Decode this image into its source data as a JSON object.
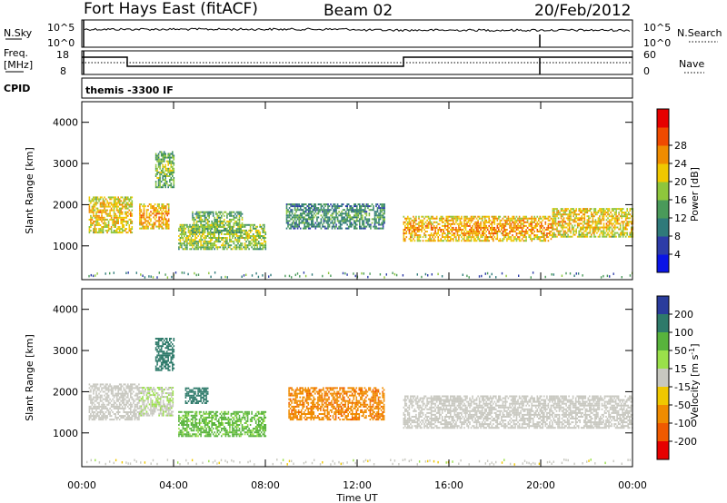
{
  "header": {
    "station": "Fort Hays East (fitACF)",
    "beam": "Beam 02",
    "date": "20/Feb/2012"
  },
  "top_panels": {
    "nsky_label": "N.Sky",
    "nsky_ticks": [
      "10^5",
      "10^0"
    ],
    "nsearch_label": "N.Search",
    "nsearch_ticks": [
      "10^5",
      "10^0"
    ],
    "freq_label": "Freq.",
    "freq_unit": "[MHz]",
    "freq_ticks": [
      "18",
      "8"
    ],
    "nave_label": "Nave",
    "nave_ticks": [
      "60",
      "0"
    ],
    "cpid_label": "CPID",
    "cpid_value": "themis -3300 IF"
  },
  "colors": {
    "power": [
      "#0a14e6",
      "#2d3ca8",
      "#2f7a7a",
      "#4a9a5a",
      "#8ec63c",
      "#f0c800",
      "#f08c00",
      "#f04a00",
      "#e60000"
    ],
    "velocity": [
      "#2a3c9c",
      "#2e7a6a",
      "#58b33c",
      "#9ae04a",
      "#c8c8c0",
      "#f0c800",
      "#f08c00",
      "#f05a00",
      "#e60000"
    ]
  },
  "chart_data": [
    {
      "type": "heatmap",
      "name": "power",
      "ylabel": "Slant Range [km]",
      "xlabel": "Time UT",
      "ylim": [
        180,
        4500
      ],
      "yticks": [
        "1000",
        "2000",
        "3000",
        "4000"
      ],
      "xticks": [
        "00:00",
        "04:00",
        "08:00",
        "12:00",
        "16:00",
        "20:00",
        "00:00"
      ],
      "colorbar": {
        "label": "Power [dB]",
        "ticks": [
          "4",
          "8",
          "12",
          "16",
          "20",
          "24",
          "28"
        ]
      },
      "echo_regions": [
        {
          "t": [
            0.3,
            2.2
          ],
          "range": [
            1300,
            2200
          ],
          "level": 20
        },
        {
          "t": [
            2.5,
            3.8
          ],
          "range": [
            1400,
            2000
          ],
          "level": 22
        },
        {
          "t": [
            3.2,
            4.0
          ],
          "range": [
            2400,
            3300
          ],
          "level": 14
        },
        {
          "t": [
            4.2,
            8.0
          ],
          "range": [
            900,
            1500
          ],
          "level": 16
        },
        {
          "t": [
            4.8,
            7.0
          ],
          "range": [
            1300,
            1800
          ],
          "level": 14
        },
        {
          "t": [
            8.9,
            13.2
          ],
          "range": [
            1400,
            2000
          ],
          "level": 10
        },
        {
          "t": [
            14.0,
            20.5
          ],
          "range": [
            1100,
            1700
          ],
          "level": 22
        },
        {
          "t": [
            20.5,
            24.0
          ],
          "range": [
            1200,
            1900
          ],
          "level": 20
        }
      ]
    },
    {
      "type": "heatmap",
      "name": "velocity",
      "ylabel": "Slant Range [km]",
      "xlabel": "Time UT",
      "ylim": [
        180,
        4500
      ],
      "yticks": [
        "1000",
        "2000",
        "3000",
        "4000"
      ],
      "xticks": [
        "00:00",
        "04:00",
        "08:00",
        "12:00",
        "16:00",
        "20:00",
        "00:00"
      ],
      "colorbar": {
        "label": "Velocity [m s",
        "label_sup": "-1",
        "label_end": "]",
        "ticks": [
          "200",
          "100",
          "50",
          "15",
          "-15",
          "-50",
          "-100",
          "-200"
        ]
      },
      "echo_regions": [
        {
          "t": [
            0.3,
            2.5
          ],
          "range": [
            1300,
            2200
          ],
          "level": 0
        },
        {
          "t": [
            2.5,
            4.0
          ],
          "range": [
            1400,
            2100
          ],
          "level": 10
        },
        {
          "t": [
            3.2,
            4.0
          ],
          "range": [
            2500,
            3300
          ],
          "level": 150
        },
        {
          "t": [
            4.2,
            8.0
          ],
          "range": [
            900,
            1500
          ],
          "level": 60
        },
        {
          "t": [
            4.5,
            5.5
          ],
          "range": [
            1700,
            2100
          ],
          "level": 180
        },
        {
          "t": [
            9.0,
            13.2
          ],
          "range": [
            1300,
            2100
          ],
          "level": -90
        },
        {
          "t": [
            14.0,
            24.0
          ],
          "range": [
            1100,
            1900
          ],
          "level": 0
        }
      ]
    }
  ]
}
